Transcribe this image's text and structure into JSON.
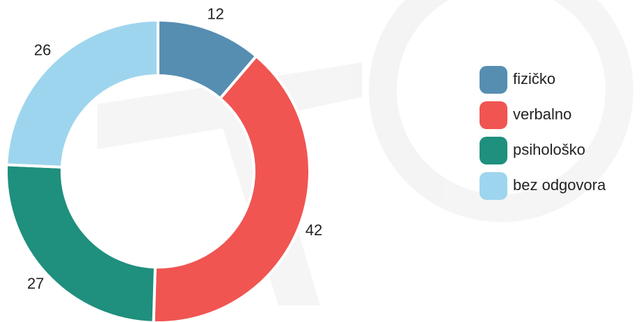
{
  "chart_data": {
    "type": "donut",
    "categories": [
      "fizičko",
      "verbalno",
      "psihološko",
      "bez odgovora"
    ],
    "values": [
      12,
      42,
      27,
      26
    ],
    "colors": [
      "#568eb2",
      "#f05552",
      "#1f8f7e",
      "#9ed5ee"
    ],
    "legend": "right"
  }
}
